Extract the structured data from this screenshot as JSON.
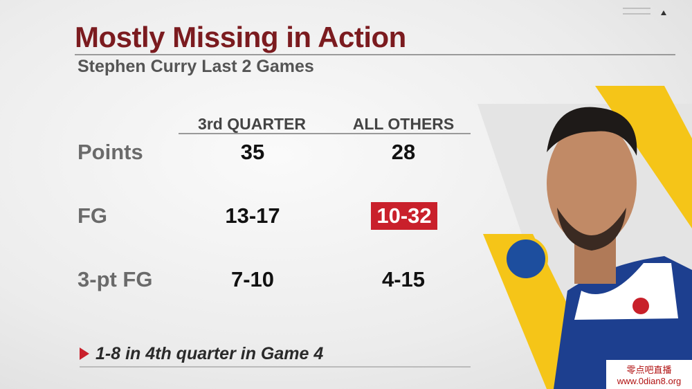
{
  "header": {
    "title": "Mostly Missing in Action",
    "subtitle": "Stephen Curry Last 2 Games"
  },
  "table": {
    "columns": [
      "3rd QUARTER",
      "ALL OTHERS"
    ],
    "rows": [
      [
        "Points",
        "35",
        "28"
      ],
      [
        "FG",
        "13-17",
        "10-32"
      ],
      [
        "3-pt FG",
        "7-10",
        "4-15"
      ]
    ]
  },
  "footnote": "1-8 in 4th quarter in Game 4",
  "watermark": {
    "name": "零点吧直播",
    "url": "www.0dian8.org"
  }
}
